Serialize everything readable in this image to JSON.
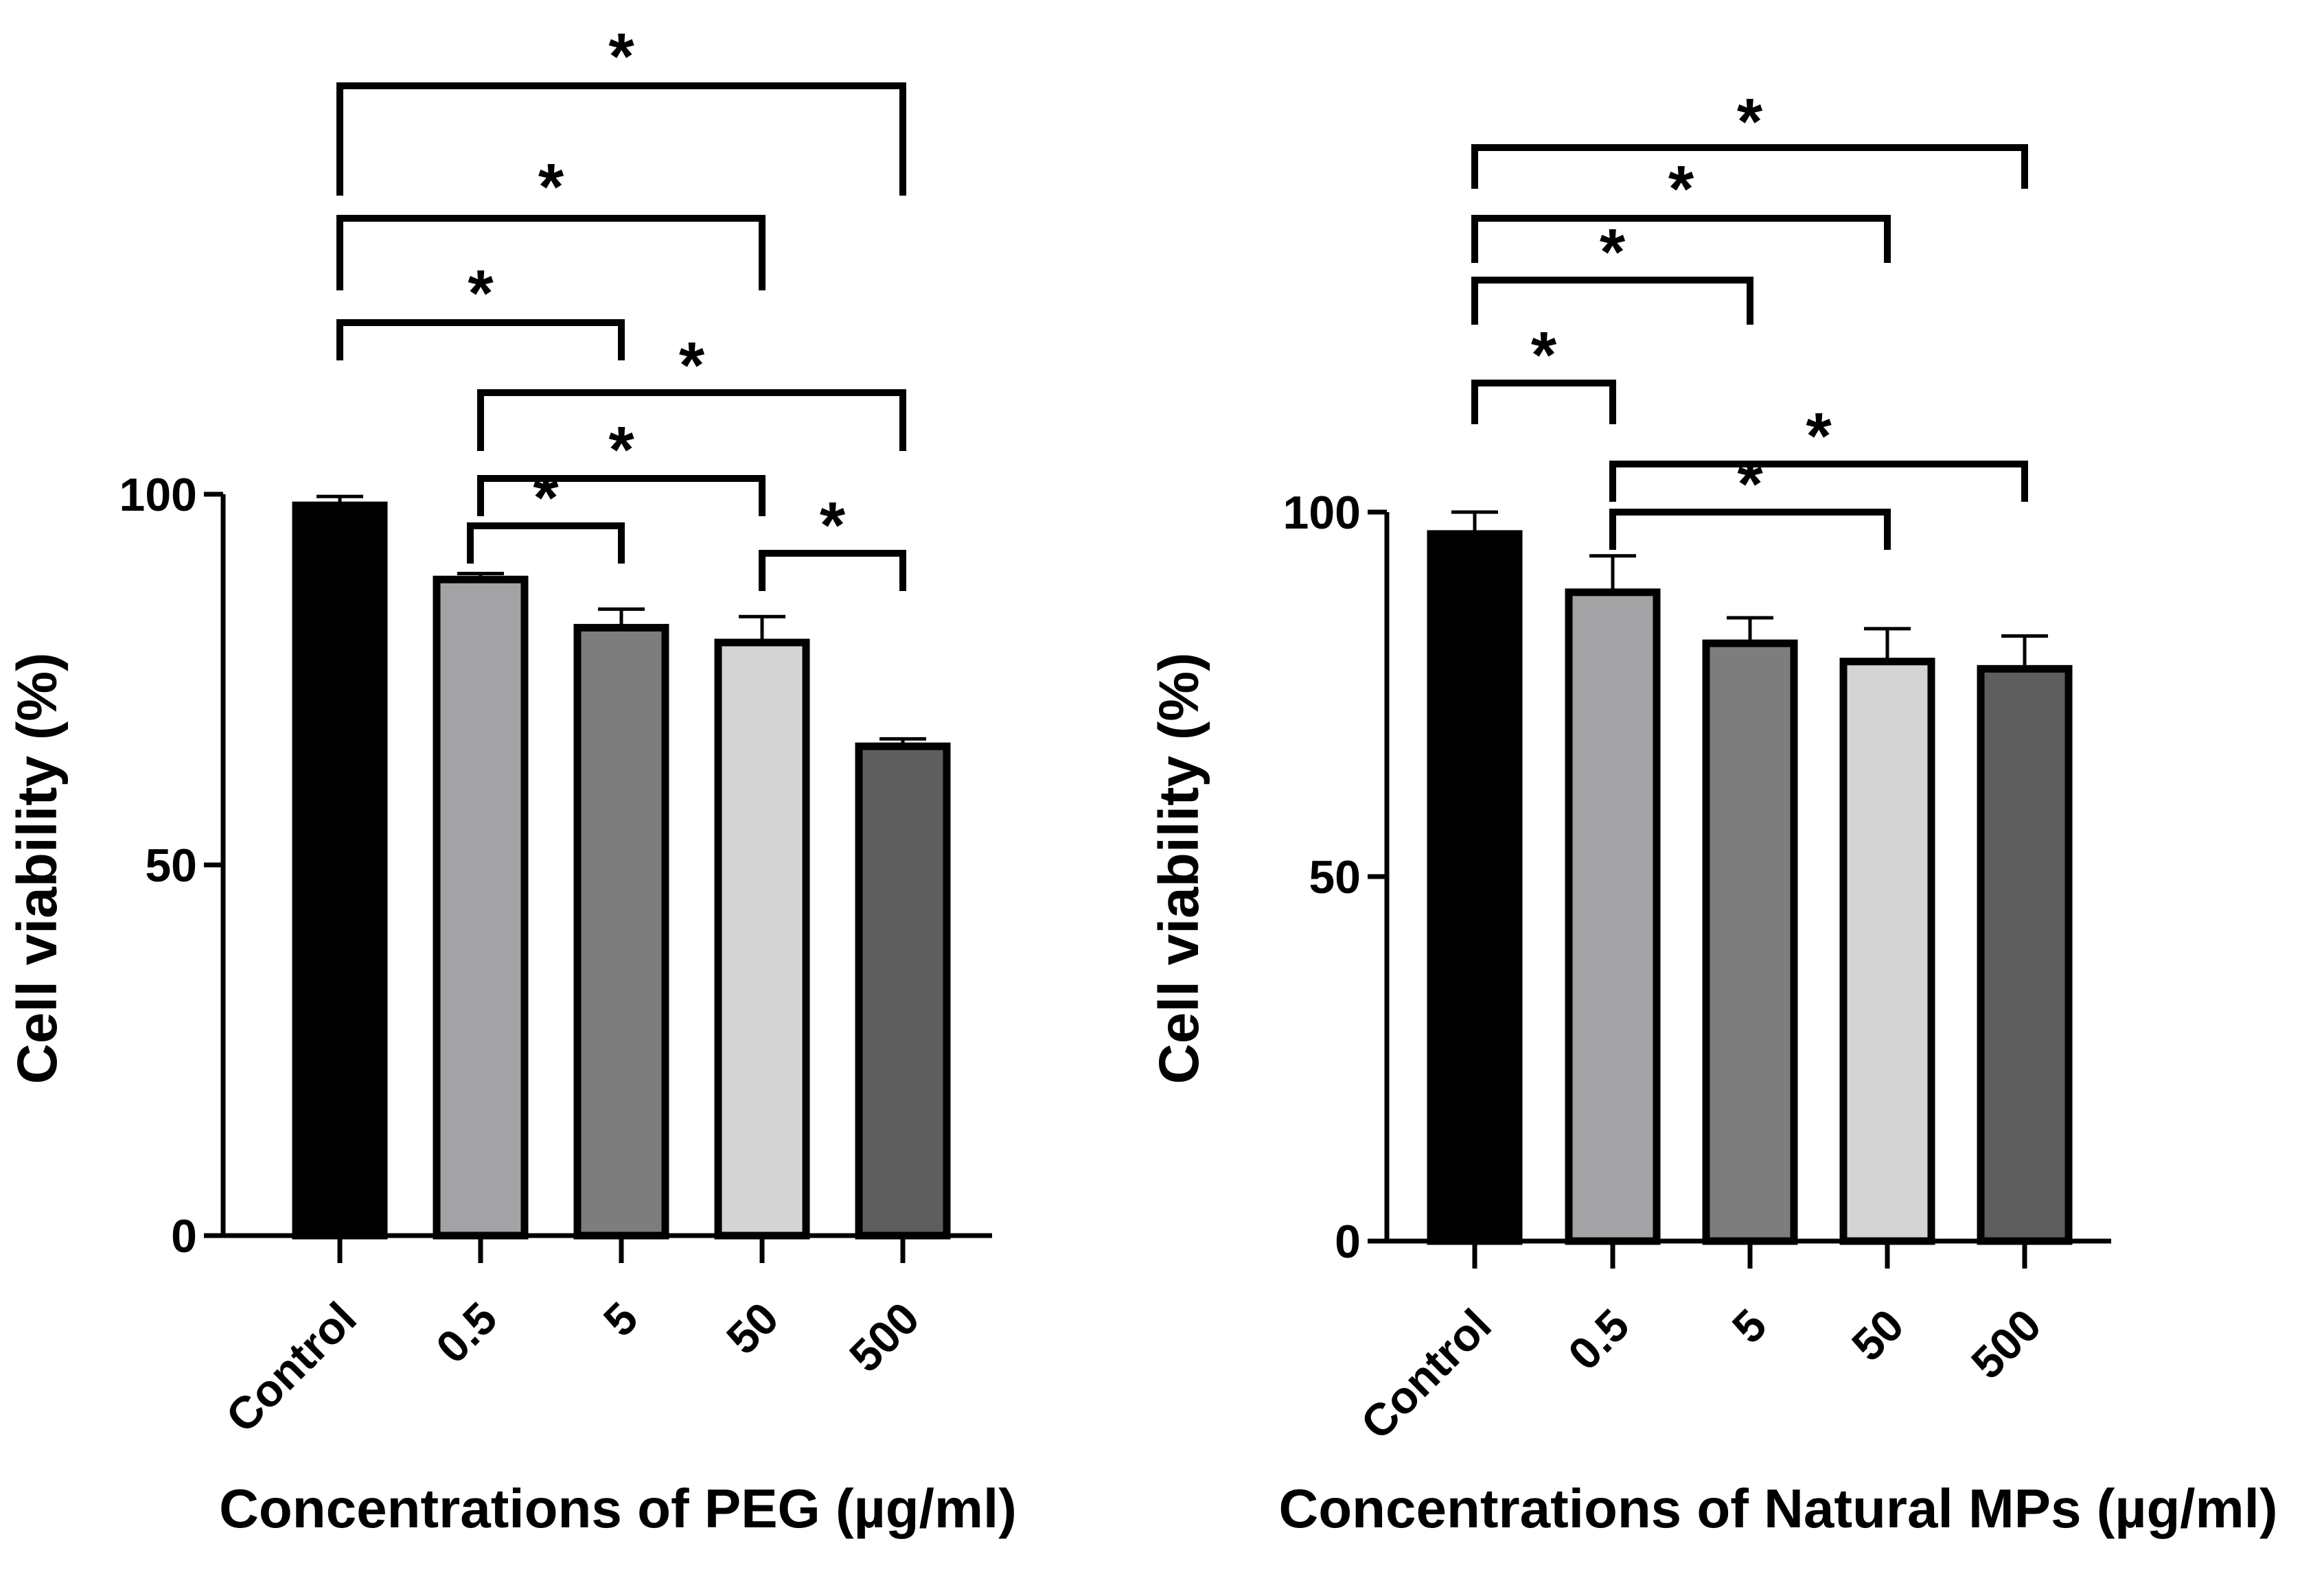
{
  "chart_data": [
    {
      "type": "bar",
      "title": "",
      "xlabel": "Concentrations of PEG (µg/ml)",
      "ylabel": "Cell viability (%)",
      "ylim": [
        0,
        100
      ],
      "yticks": [
        0,
        50,
        100
      ],
      "categories": [
        "Control",
        "0.5",
        "5",
        "50",
        "500"
      ],
      "values": [
        98.5,
        88.5,
        82,
        80,
        66
      ],
      "errors": [
        1.2,
        0.8,
        2.5,
        3.5,
        1
      ],
      "colors": [
        "#000000",
        "#a3a3a6",
        "#7d7d7d",
        "#d4d4d4",
        "#5e5e5e"
      ],
      "significance": [
        {
          "from": 0,
          "to": 4,
          "label": "*"
        },
        {
          "from": 0,
          "to": 3,
          "label": "*"
        },
        {
          "from": 0,
          "to": 2,
          "label": "*"
        },
        {
          "from": 1,
          "to": 4,
          "label": "*"
        },
        {
          "from": 1,
          "to": 3,
          "label": "*"
        },
        {
          "from": 1,
          "to": 2,
          "label": "*"
        },
        {
          "from": 3,
          "to": 4,
          "label": "*"
        }
      ]
    },
    {
      "type": "bar",
      "title": "",
      "xlabel": "Concentrations of Natural MPs (µg/ml)",
      "ylabel": "Cell viability (%)",
      "ylim": [
        0,
        100
      ],
      "yticks": [
        0,
        50,
        100
      ],
      "categories": [
        "Control",
        "0.5",
        "5",
        "50",
        "500"
      ],
      "values": [
        97,
        89,
        82,
        79.5,
        78.5
      ],
      "errors": [
        3,
        5,
        3.5,
        4.5,
        4.5
      ],
      "colors": [
        "#000000",
        "#a3a3a6",
        "#7d7d7d",
        "#d4d4d4",
        "#5e5e5e"
      ],
      "significance": [
        {
          "from": 0,
          "to": 4,
          "label": "*"
        },
        {
          "from": 0,
          "to": 3,
          "label": "*"
        },
        {
          "from": 0,
          "to": 2,
          "label": "*"
        },
        {
          "from": 0,
          "to": 1,
          "label": "*"
        },
        {
          "from": 1,
          "to": 4,
          "label": "*"
        },
        {
          "from": 1,
          "to": 3,
          "label": "*"
        }
      ]
    }
  ]
}
